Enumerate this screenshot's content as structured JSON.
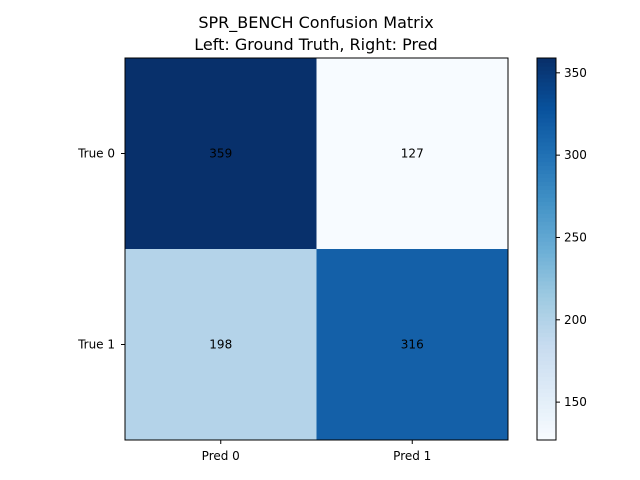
{
  "chart_data": {
    "type": "heatmap",
    "title": "SPR_BENCH Confusion Matrix",
    "subtitle": "Left: Ground Truth, Right: Pred",
    "rows": [
      "True 0",
      "True 1"
    ],
    "columns": [
      "Pred 0",
      "Pred 1"
    ],
    "values": [
      [
        359,
        127
      ],
      [
        198,
        316
      ]
    ],
    "colormap": "Blues",
    "color_range": [
      127,
      359
    ],
    "colorbar_ticks": [
      150,
      200,
      250,
      300,
      350
    ],
    "colorbar_tick_labels": [
      "150",
      "200",
      "250",
      "300",
      "350"
    ],
    "grid": false
  }
}
